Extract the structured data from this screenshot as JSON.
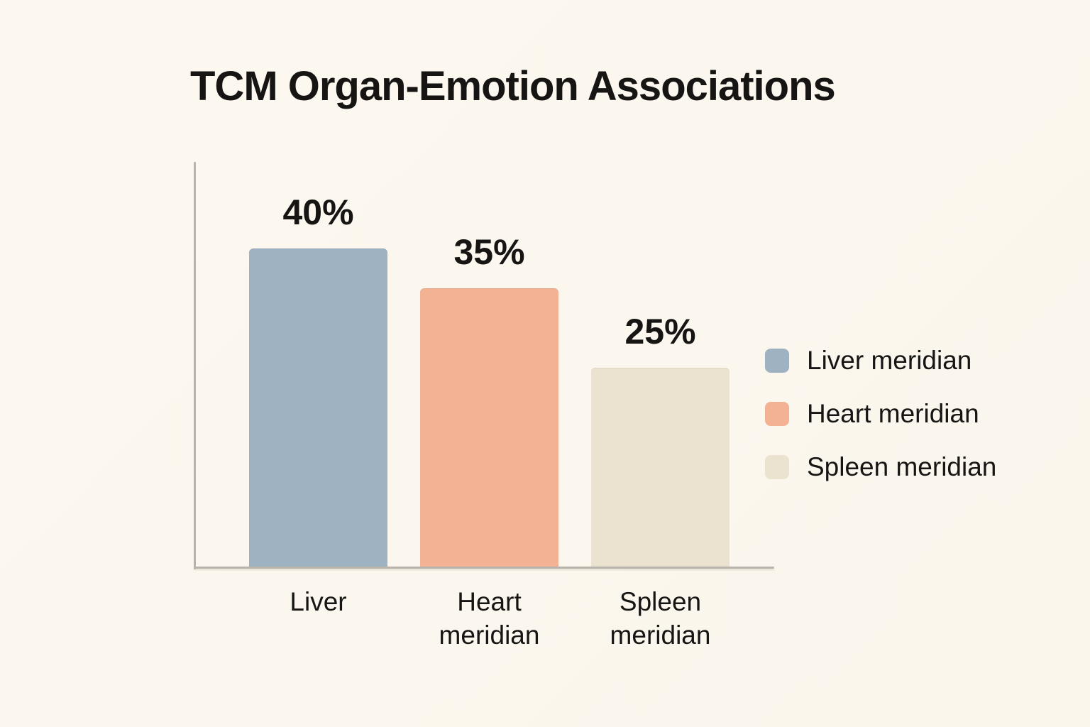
{
  "title": "TCM Organ-Emotion Associations",
  "colors": {
    "background": "#fbf7ee",
    "axis": "#b8b4ab",
    "text": "#161514",
    "liver_bar": "#9fb2c2",
    "heart_bar": "#f4b294",
    "spleen_bar": "#ebe2d0"
  },
  "chart_data": {
    "type": "bar",
    "title": "TCM Organ-Emotion Associations",
    "categories": [
      "Liver",
      "Heart meridian",
      "Spleen meridian"
    ],
    "tick_labels": [
      "Liver",
      "Heart\nmeridian",
      "Spleen\nmeridian"
    ],
    "values": [
      40,
      35,
      25
    ],
    "value_labels": [
      "40%",
      "35%",
      "25%"
    ],
    "bar_colors": [
      "#9fb2c2",
      "#f4b294",
      "#ebe2d0"
    ],
    "xlabel": "",
    "ylabel": "",
    "ylim": [
      0,
      50
    ],
    "grid": false,
    "y_ticks_visible": false,
    "legend": {
      "position": "right",
      "entries": [
        {
          "label": "Liver meridian",
          "color": "#9fb2c2"
        },
        {
          "label": "Heart meridian",
          "color": "#f4b294"
        },
        {
          "label": "Spleen meridian",
          "color": "#ebe2d0"
        }
      ]
    }
  }
}
